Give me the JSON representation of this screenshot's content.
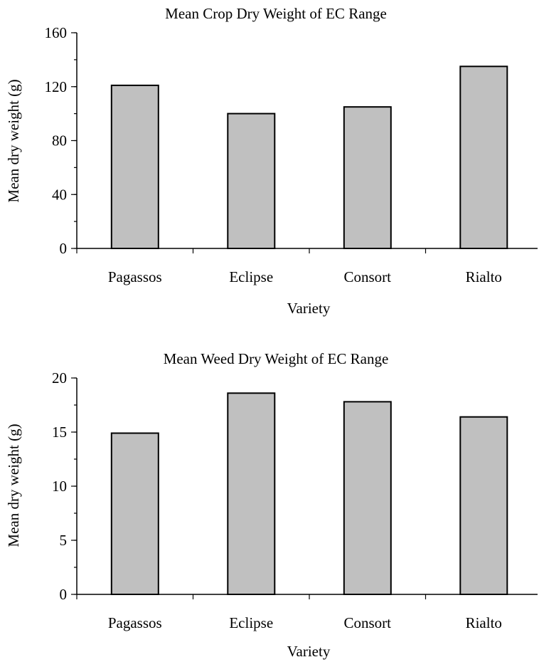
{
  "chart_data": [
    {
      "type": "bar",
      "title": "Mean Crop Dry Weight of EC Range",
      "xlabel": "Variety",
      "ylabel": "Mean dry weight (g)",
      "categories": [
        "Pagassos",
        "Eclipse",
        "Consort",
        "Rialto"
      ],
      "values": [
        121,
        100,
        105,
        135
      ],
      "ylim": [
        0,
        160
      ],
      "yticks": [
        0,
        40,
        80,
        120,
        160
      ],
      "ytick_labels": [
        "0",
        "40",
        "80",
        "120",
        "160"
      ],
      "minor_step": 20,
      "bar_color": "#c0c0c0",
      "grid": false,
      "legend": false
    },
    {
      "type": "bar",
      "title": "Mean Weed Dry Weight of EC Range",
      "xlabel": "Variety",
      "ylabel": "Mean dry weight (g)",
      "categories": [
        "Pagassos",
        "Eclipse",
        "Consort",
        "Rialto"
      ],
      "values": [
        14.9,
        18.6,
        17.8,
        16.4
      ],
      "ylim": [
        0,
        20
      ],
      "yticks": [
        0,
        5,
        10,
        15,
        20
      ],
      "ytick_labels": [
        "0",
        "5",
        "10",
        "15",
        "20"
      ],
      "minor_step": 2.5,
      "bar_color": "#c0c0c0",
      "grid": false,
      "legend": false
    }
  ]
}
